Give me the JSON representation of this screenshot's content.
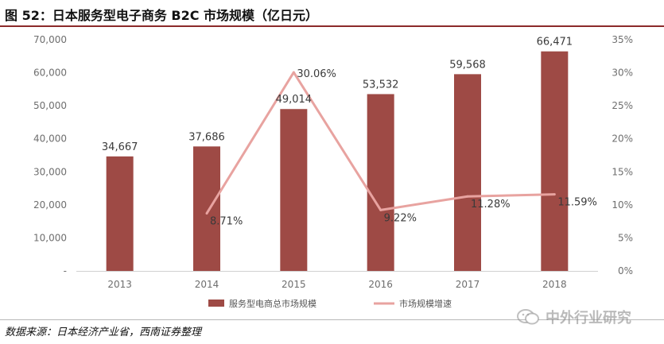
{
  "title": "图 52：日本服务型电子商务 B2C 市场规模（亿日元）",
  "source": "数据来源：日本经济产业省，西南证券整理",
  "watermark": {
    "text": "中外行业研究",
    "icon": "wechat-icon"
  },
  "colors": {
    "bar": "#9e4a45",
    "line": "#e8a3a0",
    "axis_text": "#6e6e6e",
    "accent": "#8b2a2a"
  },
  "chart_data": {
    "type": "bar",
    "categories": [
      "2013",
      "2014",
      "2015",
      "2016",
      "2017",
      "2018"
    ],
    "series": [
      {
        "name": "服务型电商总市场规模",
        "type": "bar",
        "axis": "left",
        "values": [
          34667,
          37686,
          49014,
          53532,
          59568,
          66471
        ],
        "labels": [
          "34,667",
          "37,686",
          "49,014",
          "53,532",
          "59,568",
          "66,471"
        ]
      },
      {
        "name": "市场规模增速",
        "type": "line",
        "axis": "right",
        "values": [
          null,
          8.71,
          30.06,
          9.22,
          11.28,
          11.59
        ],
        "labels": [
          "",
          "8.71%",
          "30.06%",
          "9.22%",
          "11.28%",
          "11.59%"
        ]
      }
    ],
    "y_left": {
      "ylim": [
        0,
        70000
      ],
      "ticks": [
        0,
        10000,
        20000,
        30000,
        40000,
        50000,
        60000,
        70000
      ],
      "tick_labels": [
        "-",
        "10,000",
        "20,000",
        "30,000",
        "40,000",
        "50,000",
        "60,000",
        "70,000"
      ]
    },
    "y_right": {
      "ylim": [
        0,
        35
      ],
      "ticks": [
        0,
        5,
        10,
        15,
        20,
        25,
        30,
        35
      ],
      "tick_labels": [
        "0%",
        "5%",
        "10%",
        "15%",
        "20%",
        "25%",
        "30%",
        "35%"
      ]
    },
    "grid": false,
    "legend_position": "bottom"
  }
}
